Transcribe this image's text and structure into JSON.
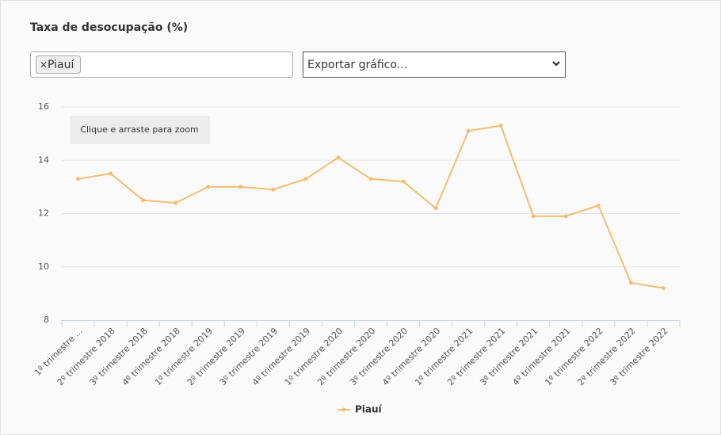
{
  "header": {
    "title": "Taxa de desocupação (%)"
  },
  "filter": {
    "remove": "×",
    "selected": "Piauí",
    "export": "Exportar gráfico..."
  },
  "chart_data": {
    "type": "line",
    "zoom_hint": "Clique e arraste para zoom",
    "categories": [
      "1º trimestre ...",
      "2º trimestre 2018",
      "3º trimestre 2018",
      "4º trimestre 2018",
      "1º trimestre 2019",
      "2º trimestre 2019",
      "3º trimestre 2019",
      "4º trimestre 2019",
      "1º trimestre 2020",
      "2º trimestre 2020",
      "3º trimestre 2020",
      "4º trimestre 2020",
      "1º trimestre 2021",
      "2º trimestre 2021",
      "3º trimestre 2021",
      "4º trimestre 2021",
      "1º trimestre 2022",
      "2º trimestre 2022",
      "3º trimestre 2022"
    ],
    "series": [
      {
        "name": "Piauí",
        "color": "#f2bd73",
        "values": [
          13.3,
          13.5,
          12.5,
          12.4,
          13.0,
          13.0,
          12.9,
          13.3,
          14.1,
          13.3,
          13.2,
          12.2,
          15.1,
          15.3,
          11.9,
          11.9,
          12.3,
          9.4,
          9.2
        ]
      }
    ],
    "ylim": [
      8,
      16
    ],
    "yticks": [
      8,
      10,
      12,
      14,
      16
    ],
    "grid": true,
    "legend": "bottom"
  }
}
